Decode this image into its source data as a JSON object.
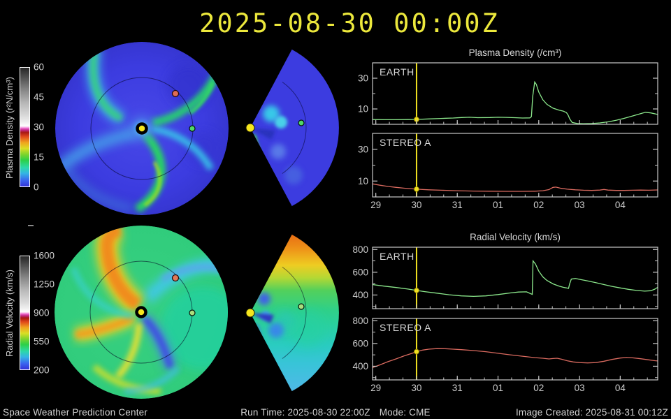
{
  "title": "2025-08-30 00:00Z",
  "footer": {
    "left": "Space Weather Prediction Center",
    "run_time": "Run Time: 2025-08-30 22:00Z",
    "mode": "Mode: CME",
    "right": "Image Created: 2025-08-31 00:12Z"
  },
  "colorbars": {
    "density": {
      "label": "Plasma Density (r²N/cm³)",
      "ticks": [
        "60",
        "45",
        "30",
        "15",
        "0"
      ]
    },
    "velocity": {
      "label": "Radial Velocity (km/s)",
      "ticks": [
        "1600",
        "1250",
        "900",
        "550",
        "200"
      ]
    }
  },
  "colors": {
    "accent_yellow": "#f0e020",
    "frame": "#c8c8c8",
    "earth_line": "#8ce88c",
    "stereo_line": "#d96a5f",
    "label_text": "#cccccc"
  },
  "chart_data": {
    "type": "line",
    "x_axis": {
      "tick_labels": [
        "29",
        "30",
        "31",
        "01",
        "02",
        "03",
        "04"
      ],
      "tick_values": [
        29,
        30,
        31,
        32,
        33,
        34,
        35
      ],
      "xlim": [
        28.92,
        35.92
      ],
      "minor_step": 0.3333,
      "now_x": 30.0
    },
    "groups": [
      {
        "id": "density",
        "title": "Plasma Density (/cm³)",
        "panels": [
          {
            "id": "density-earth",
            "label": "EARTH",
            "color": "#8ce88c",
            "ylim": [
              0,
              40
            ],
            "y_major": [
              10,
              30
            ],
            "y_minor": [
              20,
              40
            ],
            "show_x_labels": false,
            "now_y": 3.2,
            "points": [
              [
                28.92,
                3.1
              ],
              [
                29.2,
                3.0
              ],
              [
                29.5,
                3.0
              ],
              [
                29.8,
                3.1
              ],
              [
                30.0,
                3.2
              ],
              [
                30.3,
                3.5
              ],
              [
                30.6,
                3.8
              ],
              [
                30.9,
                4.1
              ],
              [
                31.1,
                4.4
              ],
              [
                31.3,
                4.6
              ],
              [
                31.5,
                4.3
              ],
              [
                31.8,
                4.4
              ],
              [
                32.0,
                4.6
              ],
              [
                32.2,
                4.5
              ],
              [
                32.4,
                4.3
              ],
              [
                32.6,
                4.1
              ],
              [
                32.78,
                4.2
              ],
              [
                32.82,
                5.0
              ],
              [
                32.85,
                18
              ],
              [
                32.9,
                27.5
              ],
              [
                32.94,
                26
              ],
              [
                33.0,
                21
              ],
              [
                33.1,
                16
              ],
              [
                33.2,
                13
              ],
              [
                33.35,
                10.5
              ],
              [
                33.5,
                9.2
              ],
              [
                33.6,
                8.6
              ],
              [
                33.68,
                7.6
              ],
              [
                33.72,
                6.0
              ],
              [
                33.76,
                3.5
              ],
              [
                33.82,
                1.2
              ],
              [
                33.95,
                0.5
              ],
              [
                34.1,
                0.4
              ],
              [
                34.3,
                0.5
              ],
              [
                34.5,
                0.9
              ],
              [
                34.7,
                1.6
              ],
              [
                34.9,
                2.6
              ],
              [
                35.1,
                3.9
              ],
              [
                35.3,
                5.4
              ],
              [
                35.5,
                6.9
              ],
              [
                35.62,
                7.8
              ],
              [
                35.75,
                7.4
              ],
              [
                35.92,
                6.4
              ]
            ]
          },
          {
            "id": "density-stereo-a",
            "label": "STEREO A",
            "color": "#d96a5f",
            "ylim": [
              0,
              40
            ],
            "y_major": [
              10,
              30
            ],
            "y_minor": [
              20,
              40
            ],
            "show_x_labels": true,
            "now_y": 4.9,
            "points": [
              [
                28.92,
                8.2
              ],
              [
                29.1,
                7.4
              ],
              [
                29.3,
                6.6
              ],
              [
                29.5,
                6.0
              ],
              [
                29.7,
                5.5
              ],
              [
                30.0,
                4.9
              ],
              [
                30.3,
                4.5
              ],
              [
                30.6,
                4.2
              ],
              [
                31.0,
                3.9
              ],
              [
                31.4,
                3.7
              ],
              [
                31.8,
                3.6
              ],
              [
                32.2,
                3.5
              ],
              [
                32.6,
                3.5
              ],
              [
                32.9,
                3.6
              ],
              [
                33.1,
                3.9
              ],
              [
                33.25,
                4.6
              ],
              [
                33.35,
                6.0
              ],
              [
                33.42,
                6.2
              ],
              [
                33.55,
                5.4
              ],
              [
                33.7,
                4.9
              ],
              [
                33.9,
                4.5
              ],
              [
                34.1,
                4.2
              ],
              [
                34.3,
                4.1
              ],
              [
                34.5,
                4.3
              ],
              [
                34.6,
                4.7
              ],
              [
                34.7,
                4.3
              ],
              [
                34.9,
                4.1
              ],
              [
                35.1,
                4.1
              ],
              [
                35.3,
                4.2
              ],
              [
                35.5,
                4.3
              ],
              [
                35.7,
                4.2
              ],
              [
                35.92,
                4.4
              ]
            ]
          }
        ]
      },
      {
        "id": "velocity",
        "title": "Radial Velocity (km/s)",
        "panels": [
          {
            "id": "velocity-earth",
            "label": "EARTH",
            "color": "#8ce88c",
            "ylim": [
              280,
              820
            ],
            "y_major": [
              400,
              600,
              800
            ],
            "y_minor": [
              300,
              500,
              700
            ],
            "show_x_labels": false,
            "now_y": 440,
            "points": [
              [
                28.92,
                492
              ],
              [
                29.2,
                478
              ],
              [
                29.5,
                466
              ],
              [
                29.8,
                452
              ],
              [
                30.0,
                440
              ],
              [
                30.2,
                430
              ],
              [
                30.5,
                416
              ],
              [
                30.8,
                402
              ],
              [
                31.1,
                392
              ],
              [
                31.4,
                388
              ],
              [
                31.7,
                392
              ],
              [
                32.0,
                404
              ],
              [
                32.3,
                418
              ],
              [
                32.5,
                426
              ],
              [
                32.7,
                428
              ],
              [
                32.8,
                412
              ],
              [
                32.84,
                406
              ],
              [
                32.86,
                700
              ],
              [
                32.92,
                672
              ],
              [
                33.0,
                610
              ],
              [
                33.1,
                560
              ],
              [
                33.2,
                528
              ],
              [
                33.35,
                498
              ],
              [
                33.5,
                478
              ],
              [
                33.6,
                468
              ],
              [
                33.68,
                462
              ],
              [
                33.73,
                458
              ],
              [
                33.76,
                500
              ],
              [
                33.8,
                540
              ],
              [
                33.9,
                545
              ],
              [
                34.0,
                538
              ],
              [
                34.2,
                524
              ],
              [
                34.4,
                508
              ],
              [
                34.6,
                492
              ],
              [
                34.8,
                476
              ],
              [
                35.0,
                462
              ],
              [
                35.2,
                450
              ],
              [
                35.4,
                440
              ],
              [
                35.6,
                434
              ],
              [
                35.75,
                438
              ],
              [
                35.85,
                452
              ],
              [
                35.92,
                468
              ]
            ]
          },
          {
            "id": "velocity-stereo-a",
            "label": "STEREO A",
            "color": "#d96a5f",
            "ylim": [
              280,
              820
            ],
            "y_major": [
              400,
              600,
              800
            ],
            "y_minor": [
              300,
              500,
              700
            ],
            "show_x_labels": true,
            "now_y": 528,
            "points": [
              [
                28.92,
                388
              ],
              [
                29.1,
                412
              ],
              [
                29.3,
                440
              ],
              [
                29.5,
                465
              ],
              [
                29.7,
                492
              ],
              [
                29.9,
                515
              ],
              [
                30.0,
                528
              ],
              [
                30.15,
                542
              ],
              [
                30.3,
                550
              ],
              [
                30.5,
                555
              ],
              [
                30.7,
                554
              ],
              [
                30.9,
                550
              ],
              [
                31.1,
                546
              ],
              [
                31.4,
                538
              ],
              [
                31.7,
                528
              ],
              [
                32.0,
                514
              ],
              [
                32.3,
                500
              ],
              [
                32.6,
                488
              ],
              [
                32.9,
                476
              ],
              [
                33.1,
                470
              ],
              [
                33.25,
                464
              ],
              [
                33.35,
                468
              ],
              [
                33.45,
                470
              ],
              [
                33.55,
                462
              ],
              [
                33.7,
                448
              ],
              [
                33.85,
                438
              ],
              [
                34.0,
                432
              ],
              [
                34.2,
                429
              ],
              [
                34.4,
                432
              ],
              [
                34.6,
                444
              ],
              [
                34.8,
                460
              ],
              [
                35.0,
                472
              ],
              [
                35.15,
                477
              ],
              [
                35.3,
                474
              ],
              [
                35.5,
                466
              ],
              [
                35.7,
                456
              ],
              [
                35.85,
                449
              ],
              [
                35.92,
                446
              ]
            ]
          }
        ]
      }
    ]
  }
}
